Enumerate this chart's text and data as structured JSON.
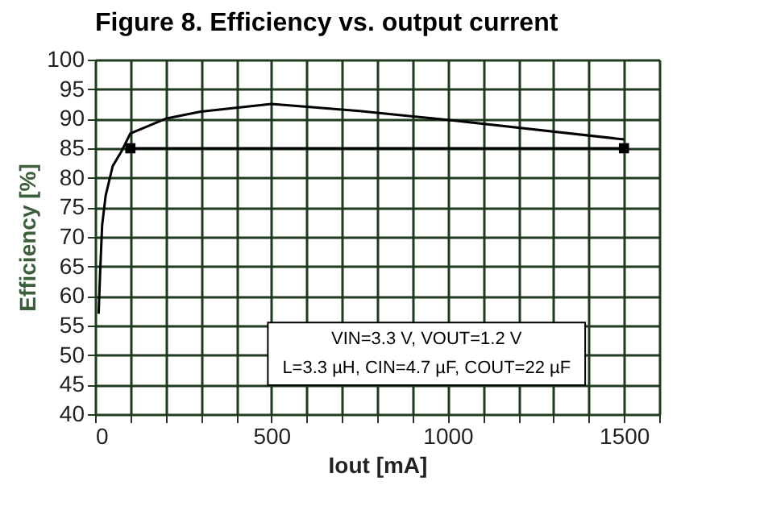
{
  "chart_data": {
    "type": "line",
    "title": "Figure 8.     Efficiency vs. output current",
    "xlabel": "Iout [mA]",
    "ylabel": "Efficiency [%]",
    "series": [
      {
        "color": "#000000",
        "marker": "none",
        "x": [
          10,
          15,
          20,
          30,
          50,
          75,
          100,
          200,
          300,
          500,
          750,
          1000,
          1500
        ],
        "values": [
          57,
          65,
          72,
          77,
          82,
          84.5,
          87.5,
          90,
          91.2,
          92.5,
          91.3,
          89.8,
          86.5
        ]
      },
      {
        "color": "#000000",
        "marker": "square",
        "x": [
          100,
          1500
        ],
        "values": [
          85,
          85
        ]
      }
    ],
    "xlim": [
      0,
      1600
    ],
    "ylim": [
      40,
      100
    ],
    "xticks": [
      0,
      {
        "value": 100,
        "label": null
      },
      {
        "value": 200,
        "label": null
      },
      {
        "value": 300,
        "label": null
      },
      {
        "value": 400,
        "label": null
      },
      500,
      {
        "value": 600,
        "label": null
      },
      {
        "value": 700,
        "label": null
      },
      {
        "value": 800,
        "label": null
      },
      {
        "value": 900,
        "label": null
      },
      1000,
      {
        "value": 1100,
        "label": null
      },
      {
        "value": 1200,
        "label": null
      },
      {
        "value": 1300,
        "label": null
      },
      {
        "value": 1400,
        "label": null
      },
      1500,
      {
        "value": 1600,
        "label": null
      }
    ],
    "yticks": [
      40,
      45,
      50,
      55,
      60,
      65,
      70,
      75,
      80,
      85,
      90,
      95,
      100
    ],
    "grid": true,
    "line_style": "solid",
    "annotations": [
      "VIN=3.3 V, VOUT=1.2 V",
      "L=3.3 µH, CIN=4.7 µF, COUT=22 µF"
    ]
  }
}
